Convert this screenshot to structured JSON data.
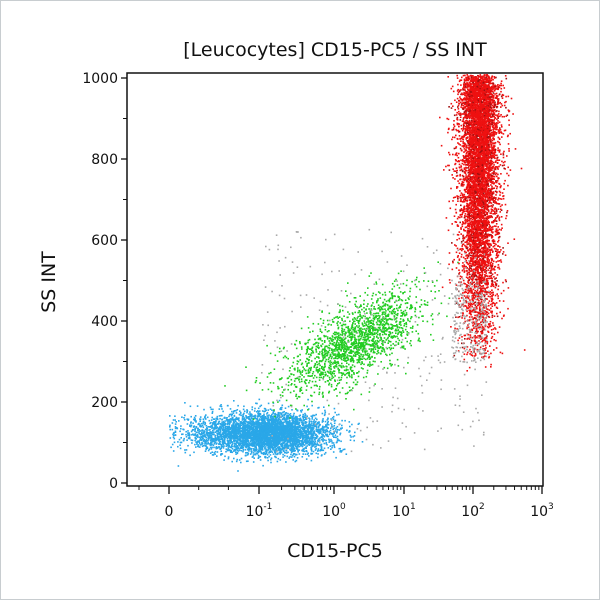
{
  "chart_data": {
    "type": "scatter",
    "title": "[Leucocytes] CD15-PC5 / SS INT",
    "xlabel": "CD15-PC5",
    "ylabel": "SS INT",
    "x_scale": "biexponential (linear near 0, log above)",
    "xlim": [
      -0.05,
      1000
    ],
    "ylim": [
      0,
      1000
    ],
    "x_ticks": [
      {
        "value": 0,
        "base": "0",
        "exp": ""
      },
      {
        "value": 0.1,
        "base": "10",
        "exp": "-1"
      },
      {
        "value": 1,
        "base": "10",
        "exp": "0"
      },
      {
        "value": 10,
        "base": "10",
        "exp": "1"
      },
      {
        "value": 100,
        "base": "10",
        "exp": "2"
      },
      {
        "value": 1000,
        "base": "10",
        "exp": "3"
      }
    ],
    "y_ticks": [
      "0",
      "200",
      "400",
      "600",
      "800",
      "1000"
    ],
    "y_tick_values": [
      0,
      200,
      400,
      600,
      800,
      1000
    ],
    "grid": false,
    "populations": [
      {
        "name_color": "blue",
        "color": "#2aa7e8",
        "x_center": 0.12,
        "y_center": 125,
        "y_spread": 25,
        "count": 4500
      },
      {
        "name_color": "green",
        "color": "#22cc22",
        "x_center": 2,
        "y_center": 350,
        "y_spread": 60,
        "count": 1800
      },
      {
        "name_color": "red",
        "color": "#ee1111",
        "x_center": 120,
        "y_range": [
          280,
          1000
        ],
        "count": 7000
      },
      {
        "name_color": "grey",
        "color": "#aaaaaa",
        "count": 500
      }
    ]
  }
}
